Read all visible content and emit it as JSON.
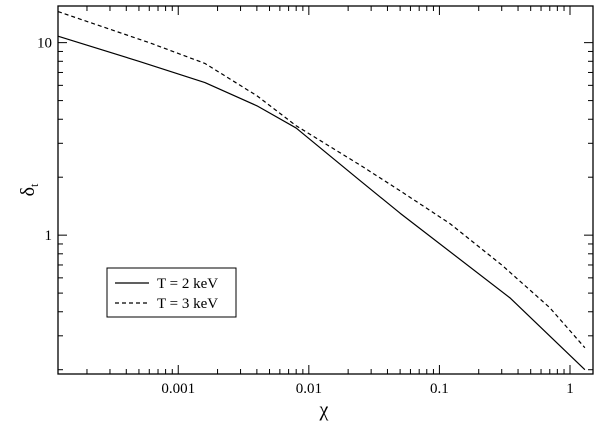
{
  "chart_data": {
    "type": "line",
    "title": "",
    "xlabel": "χ",
    "ylabel": "δ",
    "ylabel_subscript": "t",
    "x_scale": "log",
    "y_scale": "log",
    "xlim": [
      0.00012,
      1.5
    ],
    "ylim": [
      0.19,
      15.5
    ],
    "grid": false,
    "legend_position": "bottom-left",
    "x_ticks": [
      {
        "value": 0.001,
        "label": "0.001"
      },
      {
        "value": 0.01,
        "label": "0.01"
      },
      {
        "value": 0.1,
        "label": "0.1"
      },
      {
        "value": 1,
        "label": "1"
      }
    ],
    "y_ticks": [
      {
        "value": 1,
        "label": "1"
      },
      {
        "value": 10,
        "label": "10"
      }
    ],
    "series": [
      {
        "name": "T = 2 keV",
        "line_style": "solid",
        "color": "#000000",
        "x": [
          0.00012,
          0.0005,
          0.0016,
          0.004,
          0.008,
          0.024,
          0.05,
          0.35,
          1.3
        ],
        "y": [
          10.8,
          8.0,
          6.2,
          4.7,
          3.6,
          1.95,
          1.3,
          0.47,
          0.2
        ]
      },
      {
        "name": "T = 3 keV",
        "line_style": "dashed",
        "color": "#000000",
        "x": [
          0.00012,
          0.0006,
          0.0016,
          0.004,
          0.008,
          0.025,
          0.05,
          0.12,
          0.3,
          0.7,
          1.3
        ],
        "y": [
          14.5,
          10.0,
          7.8,
          5.3,
          3.7,
          2.3,
          1.7,
          1.15,
          0.7,
          0.42,
          0.26
        ]
      }
    ]
  }
}
